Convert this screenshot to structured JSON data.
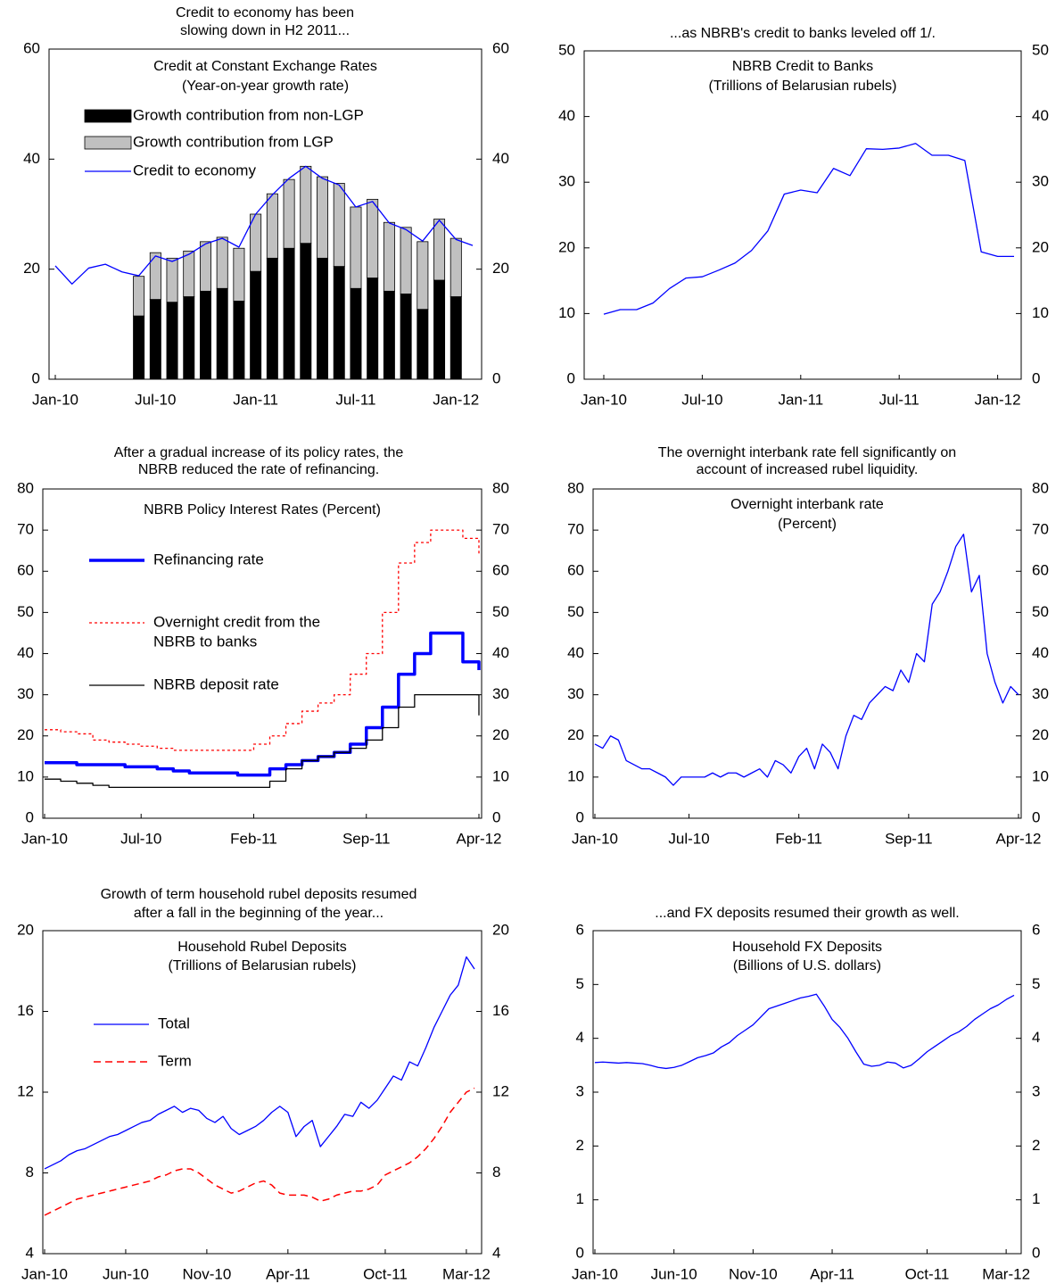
{
  "chart_data": [
    {
      "type": "bar",
      "title": [
        "Credit to economy has been",
        "slowing down in H2 2011..."
      ],
      "subtitle": [
        "Credit  at Constant Exchange Rates",
        "(Year-on-year growth rate)"
      ],
      "categories": [
        "Jan-10",
        null,
        null,
        null,
        null,
        null,
        "Jul-10",
        null,
        null,
        null,
        null,
        null,
        "Jan-11",
        null,
        null,
        null,
        null,
        null,
        "Jul-11",
        null,
        null,
        null,
        null,
        null,
        "Jan-12",
        null
      ],
      "series": [
        {
          "name": "Growth contribution from non-LGP",
          "color": "#000000",
          "kind": "bar",
          "stacked": true,
          "values": [
            null,
            null,
            null,
            null,
            null,
            11.5,
            14.5,
            14,
            15,
            16,
            16.5,
            14.2,
            19.6,
            22,
            23.8,
            24.7,
            22,
            20.5,
            16.5,
            18.4,
            16,
            15.5,
            12.7,
            18,
            15,
            null
          ]
        },
        {
          "name": "Growth contribution from LGP",
          "color": "#c0c0c0",
          "kind": "bar",
          "stacked": true,
          "values": [
            null,
            null,
            null,
            null,
            null,
            7.2,
            8.5,
            8,
            8.3,
            9,
            9.3,
            9.6,
            10.4,
            11.7,
            12.5,
            14,
            14.8,
            15.1,
            14.8,
            14.3,
            12.5,
            12.1,
            12.3,
            11.1,
            10.6,
            null
          ]
        },
        {
          "name": "Credit to economy",
          "color": "#0000ff",
          "kind": "line",
          "values": [
            20.6,
            17.3,
            20.2,
            20.9,
            19.5,
            18.8,
            22.4,
            21.4,
            22.7,
            24.6,
            25.6,
            24,
            30,
            33.5,
            36.5,
            38.7,
            36.5,
            35.3,
            31.3,
            32.3,
            28.4,
            27.2,
            25.1,
            28.9,
            25.4,
            24.3
          ]
        }
      ],
      "ylim": [
        0,
        60
      ],
      "yticks": [
        0,
        20,
        40,
        60
      ],
      "y2lim": [
        0,
        60
      ],
      "y2ticks": [
        0,
        20,
        40,
        60
      ],
      "legend": "upper left"
    },
    {
      "type": "line",
      "title": [
        "...as NBRB's credit to banks leveled off 1/."
      ],
      "subtitle": [
        "NBRB Credit to Banks",
        "(Trillions of Belarusian rubels)"
      ],
      "categories": [
        "Jan-10",
        null,
        null,
        null,
        null,
        null,
        "Jul-10",
        null,
        null,
        null,
        null,
        null,
        "Jan-11",
        null,
        null,
        null,
        null,
        null,
        "Jul-11",
        null,
        null,
        null,
        null,
        null,
        "Jan-12",
        null
      ],
      "series": [
        {
          "color": "#0000ff",
          "values": [
            9.9,
            10.6,
            10.6,
            11.6,
            13.8,
            15.4,
            15.6,
            16.6,
            17.7,
            19.6,
            22.6,
            28.2,
            28.8,
            28.4,
            32.1,
            31,
            35.1,
            35,
            35.2,
            35.9,
            34.1,
            34.1,
            33.3,
            19.4,
            18.7,
            18.7
          ]
        }
      ],
      "ylim": [
        0,
        50
      ],
      "yticks": [
        0,
        10,
        20,
        30,
        40,
        50
      ],
      "y2lim": [
        0,
        50
      ],
      "y2ticks": [
        0,
        10,
        20,
        30,
        40,
        50
      ]
    },
    {
      "type": "line",
      "title": [
        "After a gradual increase of its policy rates, the",
        "NBRB reduced the rate of refinancing."
      ],
      "subtitle": [
        "NBRB Policy Interest Rates (Percent)"
      ],
      "categories": [
        "Jan-10",
        null,
        null,
        null,
        null,
        null,
        "Jul-10",
        null,
        null,
        null,
        null,
        null,
        null,
        "Feb-11",
        null,
        null,
        null,
        null,
        null,
        null,
        "Sep-11",
        null,
        null,
        null,
        null,
        null,
        null,
        "Apr-12"
      ],
      "series": [
        {
          "name": [
            "Refinancing rate"
          ],
          "color": "#0000ff",
          "width": 3.5,
          "step": true,
          "values": [
            13.5,
            13.5,
            13,
            13,
            13,
            12.5,
            12.5,
            12,
            11.5,
            11,
            11,
            11,
            10.5,
            10.5,
            12,
            13,
            14,
            15,
            16,
            18,
            22,
            27,
            35,
            40,
            45,
            45,
            38,
            36
          ]
        },
        {
          "name": [
            "Overnight credit from the",
            "NBRB to banks"
          ],
          "color": "#ff0000",
          "width": 1.3,
          "dash": "3,3",
          "step": true,
          "values": [
            21.5,
            21,
            20.5,
            19,
            18.5,
            18,
            17.5,
            17,
            16.5,
            16.5,
            16.5,
            16.5,
            16.5,
            18,
            20,
            23,
            26,
            28,
            30,
            35,
            40,
            50,
            62,
            67,
            70,
            70,
            68,
            64
          ]
        },
        {
          "name": [
            "NBRB deposit rate"
          ],
          "color": "#000000",
          "width": 1.3,
          "step": true,
          "values": [
            9.5,
            9,
            8.5,
            8,
            7.5,
            7.5,
            7.5,
            7.5,
            7.5,
            7.5,
            7.5,
            7.5,
            7.5,
            7.5,
            9,
            12,
            14,
            15,
            16,
            17,
            19,
            22,
            27,
            30,
            30,
            30,
            30,
            25
          ]
        }
      ],
      "ylim": [
        0,
        80
      ],
      "yticks": [
        0,
        10,
        20,
        30,
        40,
        50,
        60,
        70,
        80
      ],
      "y2lim": [
        0,
        80
      ],
      "y2ticks": [
        0,
        10,
        20,
        30,
        40,
        50,
        60,
        70,
        80
      ],
      "legend": "left"
    },
    {
      "type": "line",
      "title": [
        "The overnight interbank rate  fell significantly on",
        "account of increased rubel liquidity."
      ],
      "subtitle": [
        "Overnight interbank rate",
        "(Percent)"
      ],
      "categories": [
        "Jan-10",
        null,
        null,
        null,
        null,
        null,
        null,
        null,
        null,
        null,
        null,
        null,
        "Jul-10",
        null,
        null,
        null,
        null,
        null,
        null,
        null,
        null,
        null,
        null,
        null,
        null,
        null,
        "Feb-11",
        null,
        null,
        null,
        null,
        null,
        null,
        null,
        null,
        null,
        null,
        null,
        null,
        null,
        "Sep-11",
        null,
        null,
        null,
        null,
        null,
        null,
        null,
        null,
        null,
        null,
        null,
        null,
        null,
        "Apr-12"
      ],
      "series": [
        {
          "color": "#0000ff",
          "values": [
            18,
            17,
            20,
            19,
            14,
            13,
            12,
            12,
            11,
            10,
            8,
            10,
            10,
            10,
            10,
            11,
            10,
            11,
            11,
            10,
            11,
            12,
            10,
            14,
            13,
            11,
            15,
            17,
            12,
            18,
            16,
            12,
            20,
            25,
            24,
            28,
            30,
            32,
            31,
            36,
            33,
            40,
            38,
            52,
            55,
            60,
            66,
            69,
            55,
            59,
            40,
            33,
            28,
            32,
            30
          ]
        }
      ],
      "ylim": [
        0,
        80
      ],
      "yticks": [
        0,
        10,
        20,
        30,
        40,
        50,
        60,
        70,
        80
      ],
      "y2lim": [
        0,
        80
      ],
      "y2ticks": [
        0,
        10,
        20,
        30,
        40,
        50,
        60,
        70,
        80
      ]
    },
    {
      "type": "line",
      "title": [
        "Growth of term household rubel deposits resumed",
        "after a fall in the beginning of the year..."
      ],
      "subtitle": [
        "Household Rubel Deposits",
        "(Trillions of Belarusian rubels)"
      ],
      "categories": [
        "Jan-10",
        null,
        null,
        null,
        null,
        null,
        null,
        null,
        null,
        null,
        "Jun-10",
        null,
        null,
        null,
        null,
        null,
        null,
        null,
        null,
        null,
        "Nov-10",
        null,
        null,
        null,
        null,
        null,
        null,
        null,
        null,
        null,
        "Apr-11",
        null,
        null,
        null,
        null,
        null,
        null,
        null,
        null,
        null,
        null,
        null,
        "Oct-11",
        null,
        null,
        null,
        null,
        null,
        null,
        null,
        null,
        null,
        "Mar-12",
        null
      ],
      "series": [
        {
          "name": [
            "Total"
          ],
          "color": "#0000ff",
          "width": 1.3,
          "values": [
            8.2,
            8.4,
            8.6,
            8.9,
            9.1,
            9.2,
            9.4,
            9.6,
            9.8,
            9.9,
            10.1,
            10.3,
            10.5,
            10.6,
            10.9,
            11.1,
            11.3,
            11.0,
            11.2,
            11.1,
            10.7,
            10.5,
            10.8,
            10.2,
            9.9,
            10.1,
            10.3,
            10.6,
            11.0,
            11.3,
            11.0,
            9.8,
            10.3,
            10.6,
            9.3,
            9.8,
            10.3,
            10.9,
            10.8,
            11.5,
            11.2,
            11.6,
            12.2,
            12.8,
            12.6,
            13.5,
            13.3,
            14.2,
            15.2,
            16.0,
            16.8,
            17.3,
            18.7,
            18.1
          ]
        },
        {
          "name": [
            "Term"
          ],
          "color": "#ff0000",
          "width": 1.5,
          "dash": "8,5",
          "values": [
            5.9,
            6.1,
            6.3,
            6.5,
            6.7,
            6.8,
            6.9,
            7.0,
            7.1,
            7.2,
            7.3,
            7.4,
            7.5,
            7.6,
            7.8,
            7.9,
            8.1,
            8.2,
            8.2,
            8.0,
            7.7,
            7.4,
            7.2,
            7.0,
            7.1,
            7.3,
            7.5,
            7.6,
            7.4,
            7.0,
            6.9,
            6.9,
            6.9,
            6.8,
            6.6,
            6.7,
            6.9,
            7.0,
            7.1,
            7.1,
            7.2,
            7.4,
            7.9,
            8.1,
            8.3,
            8.5,
            8.8,
            9.2,
            9.7,
            10.3,
            11.0,
            11.5,
            12.0,
            12.2
          ]
        }
      ],
      "ylim": [
        4,
        20
      ],
      "yticks": [
        4,
        8,
        12,
        16,
        20
      ],
      "y2lim": [
        4,
        20
      ],
      "y2ticks": [
        4,
        8,
        12,
        16,
        20
      ],
      "legend": "left"
    },
    {
      "type": "line",
      "title": [
        "...and FX deposits resumed their growth as well."
      ],
      "subtitle": [
        "Household FX Deposits",
        "(Billions of U.S. dollars)"
      ],
      "categories": [
        "Jan-10",
        null,
        null,
        null,
        null,
        null,
        null,
        null,
        null,
        null,
        "Jun-10",
        null,
        null,
        null,
        null,
        null,
        null,
        null,
        null,
        null,
        "Nov-10",
        null,
        null,
        null,
        null,
        null,
        null,
        null,
        null,
        null,
        "Apr-11",
        null,
        null,
        null,
        null,
        null,
        null,
        null,
        null,
        null,
        null,
        null,
        "Oct-11",
        null,
        null,
        null,
        null,
        null,
        null,
        null,
        null,
        null,
        "Mar-12",
        null
      ],
      "series": [
        {
          "color": "#0000ff",
          "values": [
            3.55,
            3.56,
            3.55,
            3.54,
            3.55,
            3.54,
            3.53,
            3.5,
            3.46,
            3.44,
            3.46,
            3.5,
            3.57,
            3.64,
            3.68,
            3.73,
            3.84,
            3.92,
            4.05,
            4.15,
            4.25,
            4.4,
            4.55,
            4.6,
            4.65,
            4.7,
            4.75,
            4.78,
            4.82,
            4.6,
            4.35,
            4.2,
            4.0,
            3.75,
            3.52,
            3.48,
            3.5,
            3.56,
            3.54,
            3.45,
            3.5,
            3.62,
            3.75,
            3.85,
            3.95,
            4.05,
            4.12,
            4.22,
            4.35,
            4.45,
            4.55,
            4.62,
            4.72,
            4.8
          ]
        }
      ],
      "ylim": [
        0,
        6
      ],
      "yticks": [
        0,
        1,
        2,
        3,
        4,
        5,
        6
      ],
      "y2lim": [
        0,
        6
      ],
      "y2ticks": [
        0,
        1,
        2,
        3,
        4,
        5,
        6
      ]
    }
  ]
}
